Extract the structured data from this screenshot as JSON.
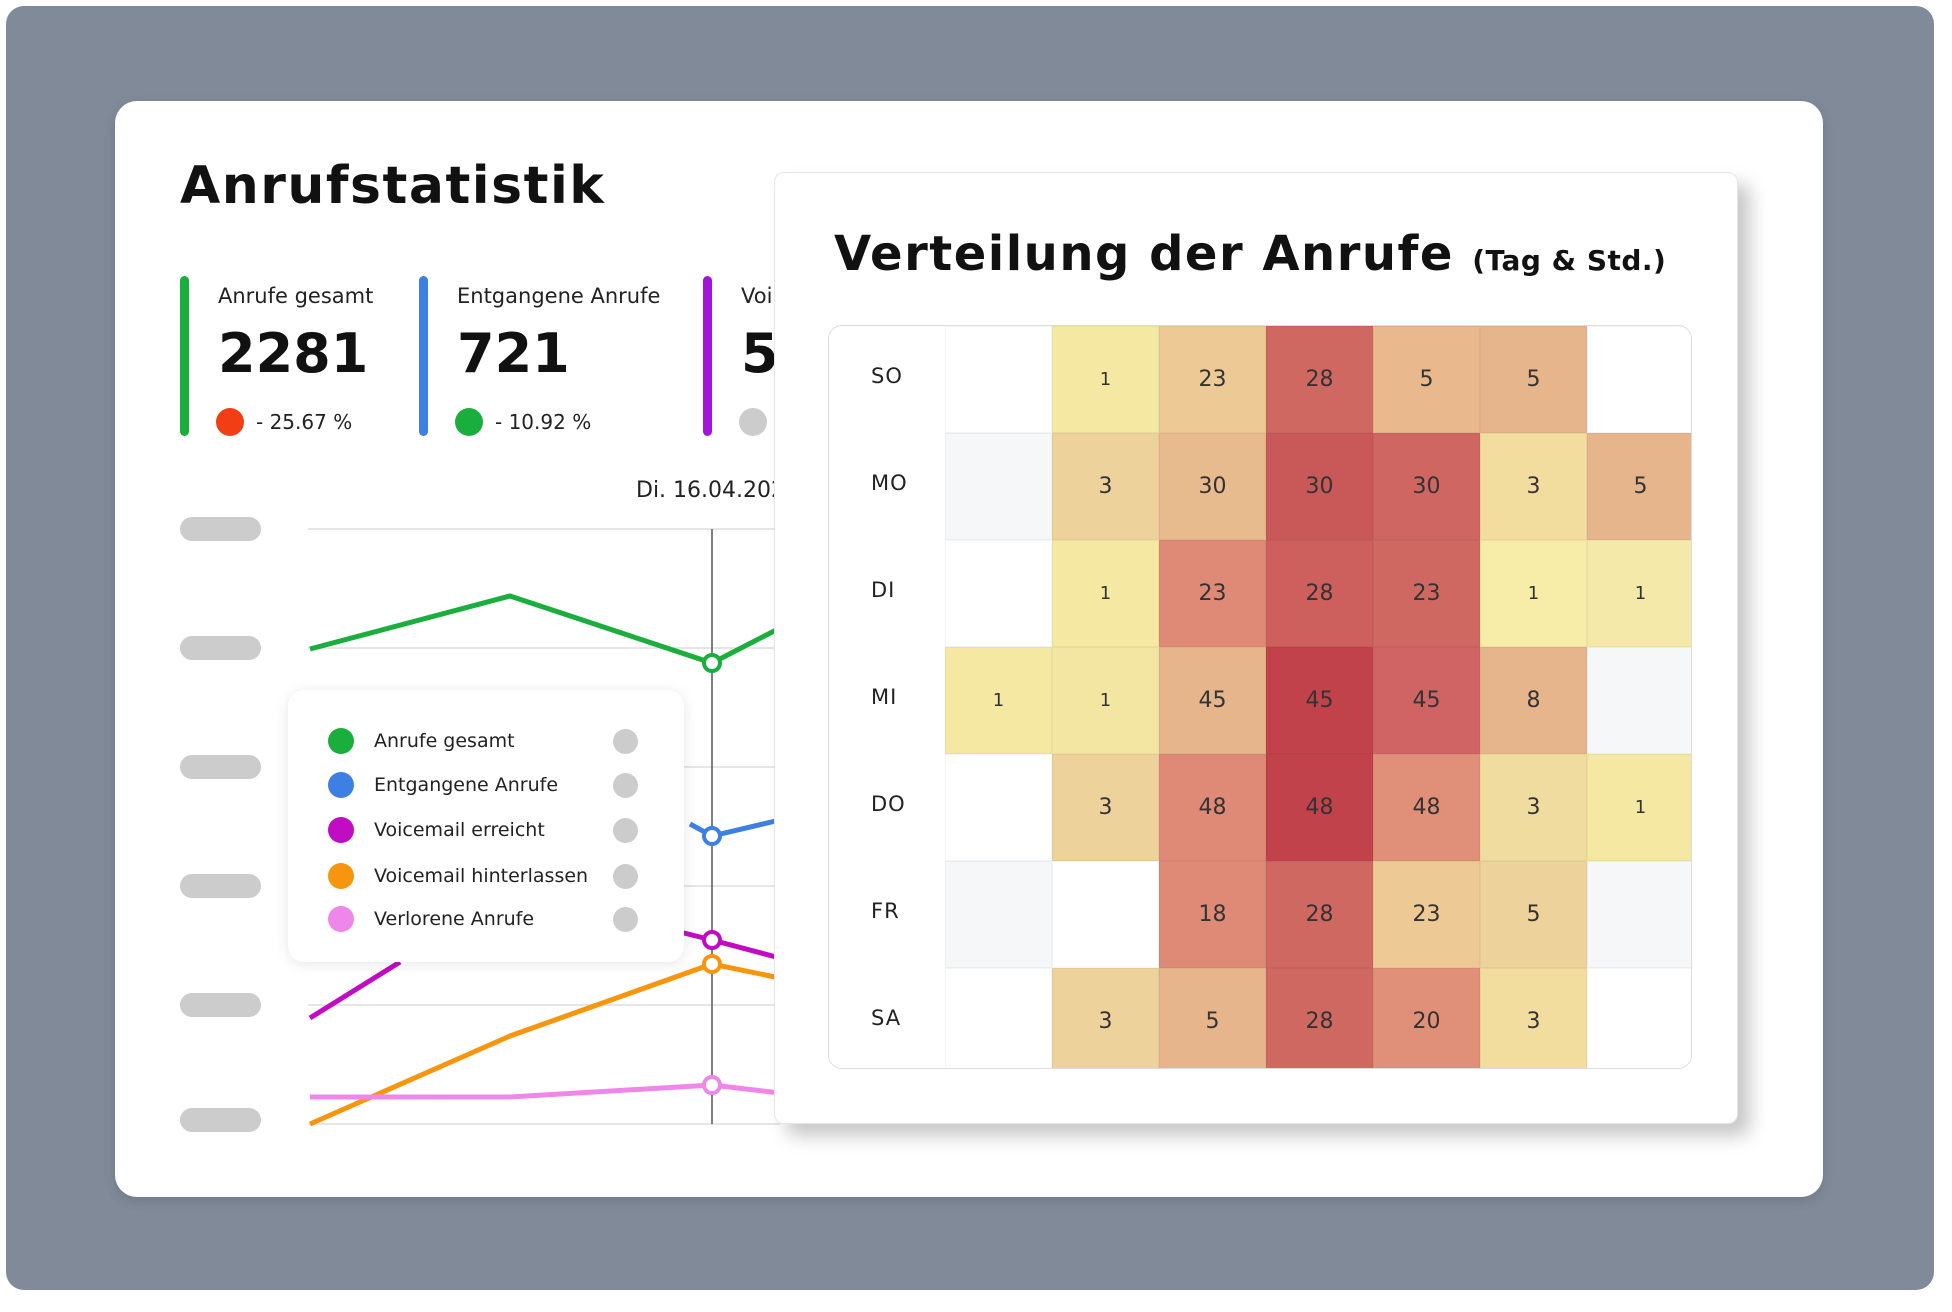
{
  "main_card": {
    "title": "Anrufstatistik"
  },
  "kpis": [
    {
      "label": "Anrufe gesamt",
      "value": "2281",
      "change": "- 25.67 %",
      "bar_color": "#1aae3c",
      "dot_color": "#f33d14"
    },
    {
      "label": "Entgangene Anrufe",
      "value": "721",
      "change": "- 10.92 %",
      "bar_color": "#3d7fe3",
      "dot_color": "#1aae3c"
    },
    {
      "label": "Voi",
      "value": "5",
      "change": "",
      "bar_color": "#a313d8",
      "dot_color": "#cccccc"
    }
  ],
  "line_chart": {
    "date_label": "Di.  16.04.202",
    "legend": [
      {
        "name": "Anrufe gesamt",
        "color": "#1aae3c"
      },
      {
        "name": "Entgangene Anrufe",
        "color": "#3d7fe3"
      },
      {
        "name": "Voicemail erreicht",
        "color": "#c10cc4"
      },
      {
        "name": "Voicemail hinterlassen",
        "color": "#f7960e"
      },
      {
        "name": "Verlorene Anrufe",
        "color": "#ef86ea"
      }
    ],
    "y_tick_count": 6
  },
  "chart_data": {
    "type": "heatmap",
    "title": "Verteilung der Anrufe",
    "subtitle": "(Tag & Std.)",
    "rows": [
      "SO",
      "MO",
      "DI",
      "MI",
      "DO",
      "FR",
      "SA"
    ],
    "column_count": 7,
    "values": [
      [
        null,
        1,
        23,
        28,
        5,
        5,
        null
      ],
      [
        null,
        3,
        30,
        30,
        30,
        3,
        5
      ],
      [
        null,
        1,
        23,
        28,
        23,
        1,
        1
      ],
      [
        1,
        1,
        45,
        45,
        45,
        8,
        null
      ],
      [
        null,
        3,
        48,
        48,
        48,
        3,
        1
      ],
      [
        null,
        null,
        18,
        28,
        23,
        5,
        null
      ],
      [
        null,
        3,
        5,
        28,
        20,
        3,
        null
      ]
    ],
    "cell_colors": [
      [
        "#ffffff",
        "#f4e8a3",
        "#ecc995",
        "#d06862",
        "#e9b98d",
        "#e6b58b",
        "#ffffff"
      ],
      [
        "#f6f7f9",
        "#eed29c",
        "#e8bb8f",
        "#c95858",
        "#cf6662",
        "#f2dc9e",
        "#e6b58b"
      ],
      [
        "#ffffff",
        "#f4e8a3",
        "#de8a77",
        "#cd5f5d",
        "#d06862",
        "#f7eca8",
        "#f4e9a8"
      ],
      [
        "#f4e8a3",
        "#f2e6a2",
        "#e6b58b",
        "#c2424b",
        "#d06464",
        "#e6b58b",
        "#f6f7f9"
      ],
      [
        "#ffffff",
        "#eed29c",
        "#de8a77",
        "#c2424b",
        "#e09078",
        "#f0dc9e",
        "#f4e8a3"
      ],
      [
        "#f6f7f9",
        "#ffffff",
        "#de8a77",
        "#d06862",
        "#ecc995",
        "#eed29c",
        "#f6f7f9"
      ],
      [
        "#ffffff",
        "#eed29c",
        "#e6b58b",
        "#d06862",
        "#e09078",
        "#f2dc9e",
        "#ffffff"
      ]
    ]
  }
}
